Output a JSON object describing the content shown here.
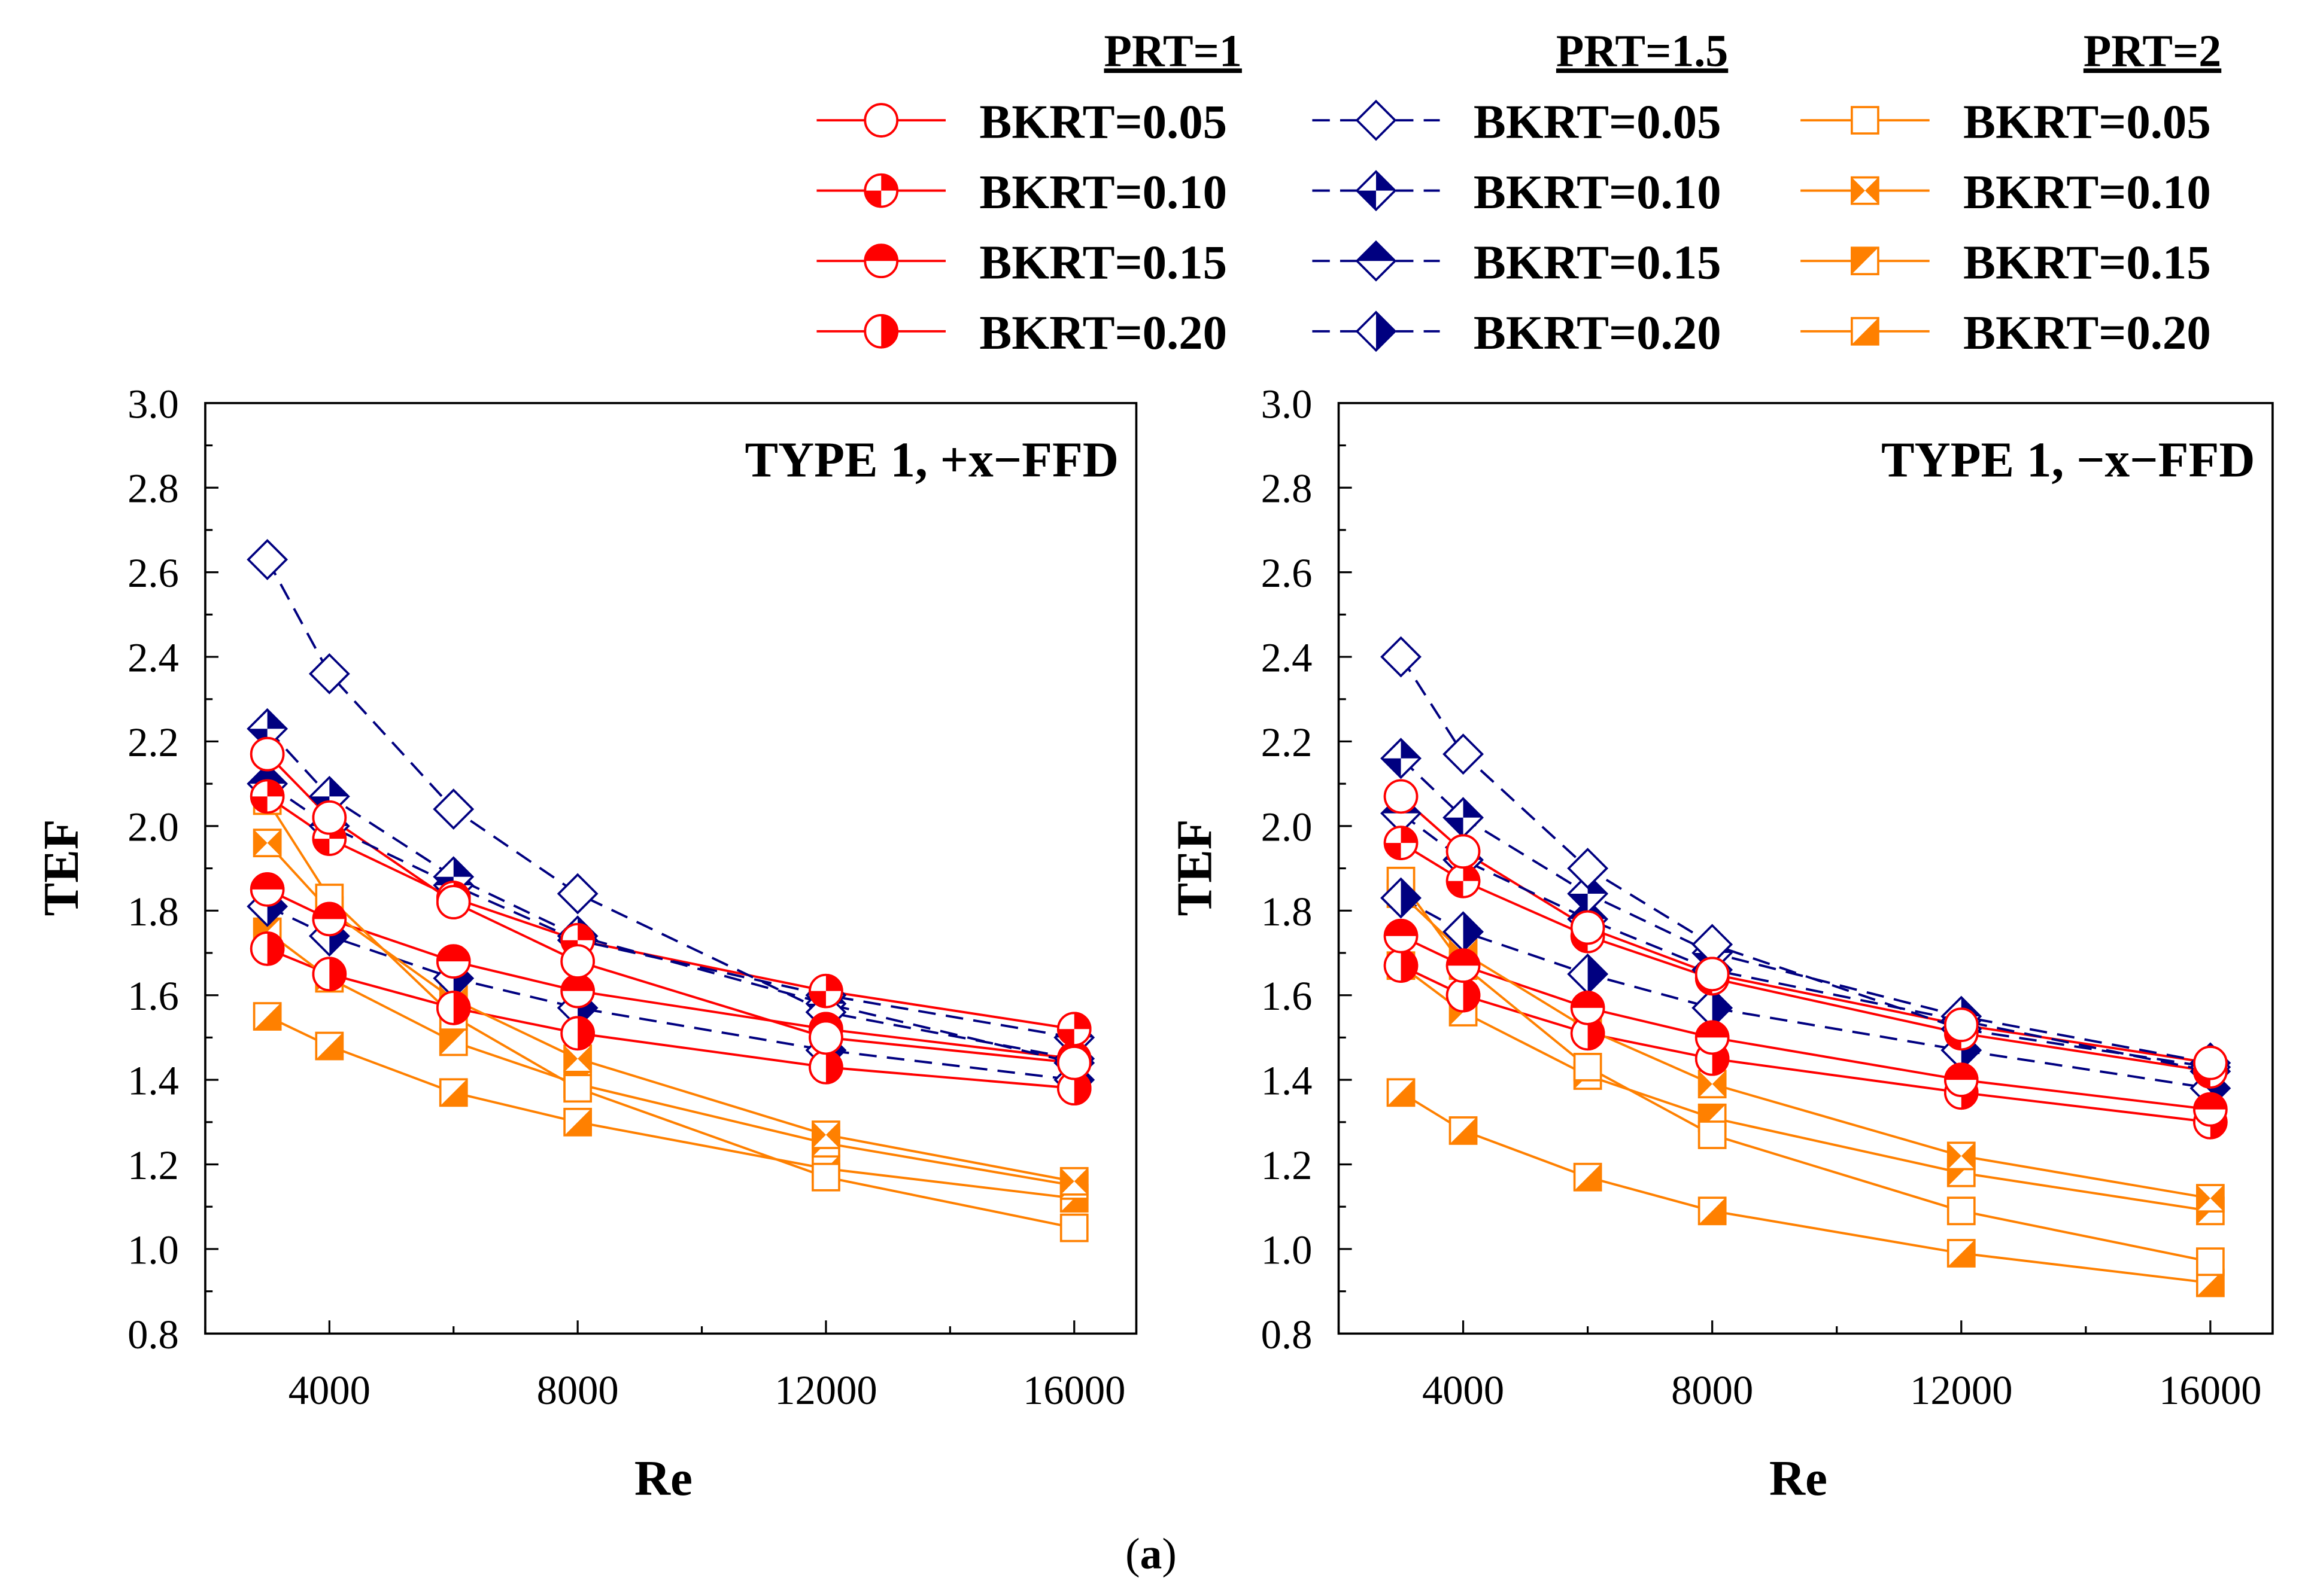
{
  "legend": {
    "groups": [
      {
        "header": "PRT=1",
        "entries": [
          "BKRT=0.05",
          "BKRT=0.10",
          "BKRT=0.15",
          "BKRT=0.20"
        ]
      },
      {
        "header": "PRT=1.5",
        "entries": [
          "BKRT=0.05",
          "BKRT=0.10",
          "BKRT=0.15",
          "BKRT=0.20"
        ]
      },
      {
        "header": "PRT=2",
        "entries": [
          "BKRT=0.05",
          "BKRT=0.10",
          "BKRT=0.15",
          "BKRT=0.20"
        ]
      }
    ]
  },
  "colors": {
    "prt1": "#FF0000",
    "prt15": "#000080",
    "prt2": "#FF8000"
  },
  "caption": {
    "open": "(",
    "letter": "a",
    "close": ")"
  },
  "chart_data": [
    {
      "type": "line",
      "title": "TYPE 1, +x−FFD",
      "xlabel": "Re",
      "ylabel": "TEF",
      "xlim": [
        2000,
        17000
      ],
      "ylim": [
        0.8,
        3.0
      ],
      "xticks": [
        4000,
        8000,
        12000,
        16000
      ],
      "xtick_labels": [
        "4000",
        "8000",
        "12000",
        "16000"
      ],
      "yticks": [
        0.8,
        1.0,
        1.2,
        1.4,
        1.6,
        1.8,
        2.0,
        2.2,
        2.4,
        2.6,
        2.8,
        3.0
      ],
      "ytick_labels": [
        "0.8",
        "1.0",
        "1.2",
        "1.4",
        "1.6",
        "1.8",
        "2.0",
        "2.2",
        "2.4",
        "2.6",
        "2.8",
        "3.0"
      ],
      "grid": false,
      "x": [
        3000,
        4000,
        6000,
        8000,
        12000,
        16000
      ],
      "series": [
        {
          "name": "PRT=1, BKRT=0.05",
          "prt": 0,
          "bkrt": 0,
          "values": [
            2.17,
            2.02,
            1.82,
            1.68,
            1.5,
            1.44
          ]
        },
        {
          "name": "PRT=1, BKRT=0.10",
          "prt": 0,
          "bkrt": 1,
          "values": [
            2.07,
            1.97,
            1.83,
            1.73,
            1.61,
            1.52
          ]
        },
        {
          "name": "PRT=1, BKRT=0.15",
          "prt": 0,
          "bkrt": 2,
          "values": [
            1.85,
            1.78,
            1.68,
            1.61,
            1.52,
            1.45
          ]
        },
        {
          "name": "PRT=1, BKRT=0.20",
          "prt": 0,
          "bkrt": 3,
          "values": [
            1.71,
            1.65,
            1.57,
            1.51,
            1.43,
            1.38
          ]
        },
        {
          "name": "PRT=1.5, BKRT=0.05",
          "prt": 1,
          "bkrt": 0,
          "values": [
            2.63,
            2.36,
            2.04,
            1.84,
            1.56,
            1.45
          ]
        },
        {
          "name": "PRT=1.5, BKRT=0.10",
          "prt": 1,
          "bkrt": 1,
          "values": [
            2.23,
            2.07,
            1.88,
            1.74,
            1.58,
            1.44
          ]
        },
        {
          "name": "PRT=1.5, BKRT=0.15",
          "prt": 1,
          "bkrt": 2,
          "values": [
            2.1,
            2.0,
            1.86,
            1.73,
            1.6,
            1.5
          ]
        },
        {
          "name": "PRT=1.5, BKRT=0.20",
          "prt": 1,
          "bkrt": 3,
          "values": [
            1.81,
            1.74,
            1.64,
            1.57,
            1.47,
            1.4
          ]
        },
        {
          "name": "PRT=2, BKRT=0.05",
          "prt": 2,
          "bkrt": 0,
          "values": [
            2.06,
            1.83,
            1.55,
            1.38,
            1.17,
            1.05
          ]
        },
        {
          "name": "PRT=2, BKRT=0.10",
          "prt": 2,
          "bkrt": 1,
          "values": [
            1.96,
            1.8,
            1.59,
            1.45,
            1.27,
            1.16
          ]
        },
        {
          "name": "PRT=2, BKRT=0.15",
          "prt": 2,
          "bkrt": 2,
          "values": [
            1.75,
            1.64,
            1.49,
            1.39,
            1.25,
            1.15
          ]
        },
        {
          "name": "PRT=2, BKRT=0.20",
          "prt": 2,
          "bkrt": 3,
          "values": [
            1.55,
            1.48,
            1.37,
            1.3,
            1.19,
            1.12
          ]
        }
      ]
    },
    {
      "type": "line",
      "title": "TYPE 1, −x−FFD",
      "xlabel": "Re",
      "ylabel": "TEF",
      "xlim": [
        2000,
        17000
      ],
      "ylim": [
        0.8,
        3.0
      ],
      "xticks": [
        4000,
        8000,
        12000,
        16000
      ],
      "xtick_labels": [
        "4000",
        "8000",
        "12000",
        "16000"
      ],
      "yticks": [
        0.8,
        1.0,
        1.2,
        1.4,
        1.6,
        1.8,
        2.0,
        2.2,
        2.4,
        2.6,
        2.8,
        3.0
      ],
      "ytick_labels": [
        "0.8",
        "1.0",
        "1.2",
        "1.4",
        "1.6",
        "1.8",
        "2.0",
        "2.2",
        "2.4",
        "2.6",
        "2.8",
        "3.0"
      ],
      "grid": false,
      "x": [
        3000,
        4000,
        6000,
        8000,
        12000,
        16000
      ],
      "series": [
        {
          "name": "PRT=1, BKRT=0.05",
          "prt": 0,
          "bkrt": 0,
          "values": [
            2.07,
            1.94,
            1.76,
            1.65,
            1.53,
            1.44
          ]
        },
        {
          "name": "PRT=1, BKRT=0.10",
          "prt": 0,
          "bkrt": 1,
          "values": [
            1.96,
            1.87,
            1.74,
            1.64,
            1.51,
            1.42
          ]
        },
        {
          "name": "PRT=1, BKRT=0.15",
          "prt": 0,
          "bkrt": 2,
          "values": [
            1.74,
            1.67,
            1.57,
            1.5,
            1.4,
            1.33
          ]
        },
        {
          "name": "PRT=1, BKRT=0.20",
          "prt": 0,
          "bkrt": 3,
          "values": [
            1.67,
            1.6,
            1.51,
            1.45,
            1.37,
            1.3
          ]
        },
        {
          "name": "PRT=1.5, BKRT=0.05",
          "prt": 1,
          "bkrt": 0,
          "values": [
            2.4,
            2.17,
            1.9,
            1.72,
            1.52,
            1.43
          ]
        },
        {
          "name": "PRT=1.5, BKRT=0.10",
          "prt": 1,
          "bkrt": 1,
          "values": [
            2.16,
            2.02,
            1.84,
            1.7,
            1.55,
            1.44
          ]
        },
        {
          "name": "PRT=1.5, BKRT=0.15",
          "prt": 1,
          "bkrt": 2,
          "values": [
            2.03,
            1.92,
            1.78,
            1.66,
            1.54,
            1.42
          ]
        },
        {
          "name": "PRT=1.5, BKRT=0.20",
          "prt": 1,
          "bkrt": 3,
          "values": [
            1.83,
            1.75,
            1.65,
            1.57,
            1.47,
            1.38
          ]
        },
        {
          "name": "PRT=2, BKRT=0.05",
          "prt": 2,
          "bkrt": 0,
          "values": [
            1.87,
            1.67,
            1.43,
            1.27,
            1.09,
            0.97
          ]
        },
        {
          "name": "PRT=2, BKRT=0.10",
          "prt": 2,
          "bkrt": 1,
          "values": [
            1.84,
            1.7,
            1.52,
            1.39,
            1.22,
            1.12
          ]
        },
        {
          "name": "PRT=2, BKRT=0.15",
          "prt": 2,
          "bkrt": 2,
          "values": [
            1.67,
            1.56,
            1.41,
            1.31,
            1.18,
            1.09
          ]
        },
        {
          "name": "PRT=2, BKRT=0.20",
          "prt": 2,
          "bkrt": 3,
          "values": [
            1.37,
            1.28,
            1.17,
            1.09,
            0.99,
            0.92
          ]
        }
      ]
    }
  ]
}
